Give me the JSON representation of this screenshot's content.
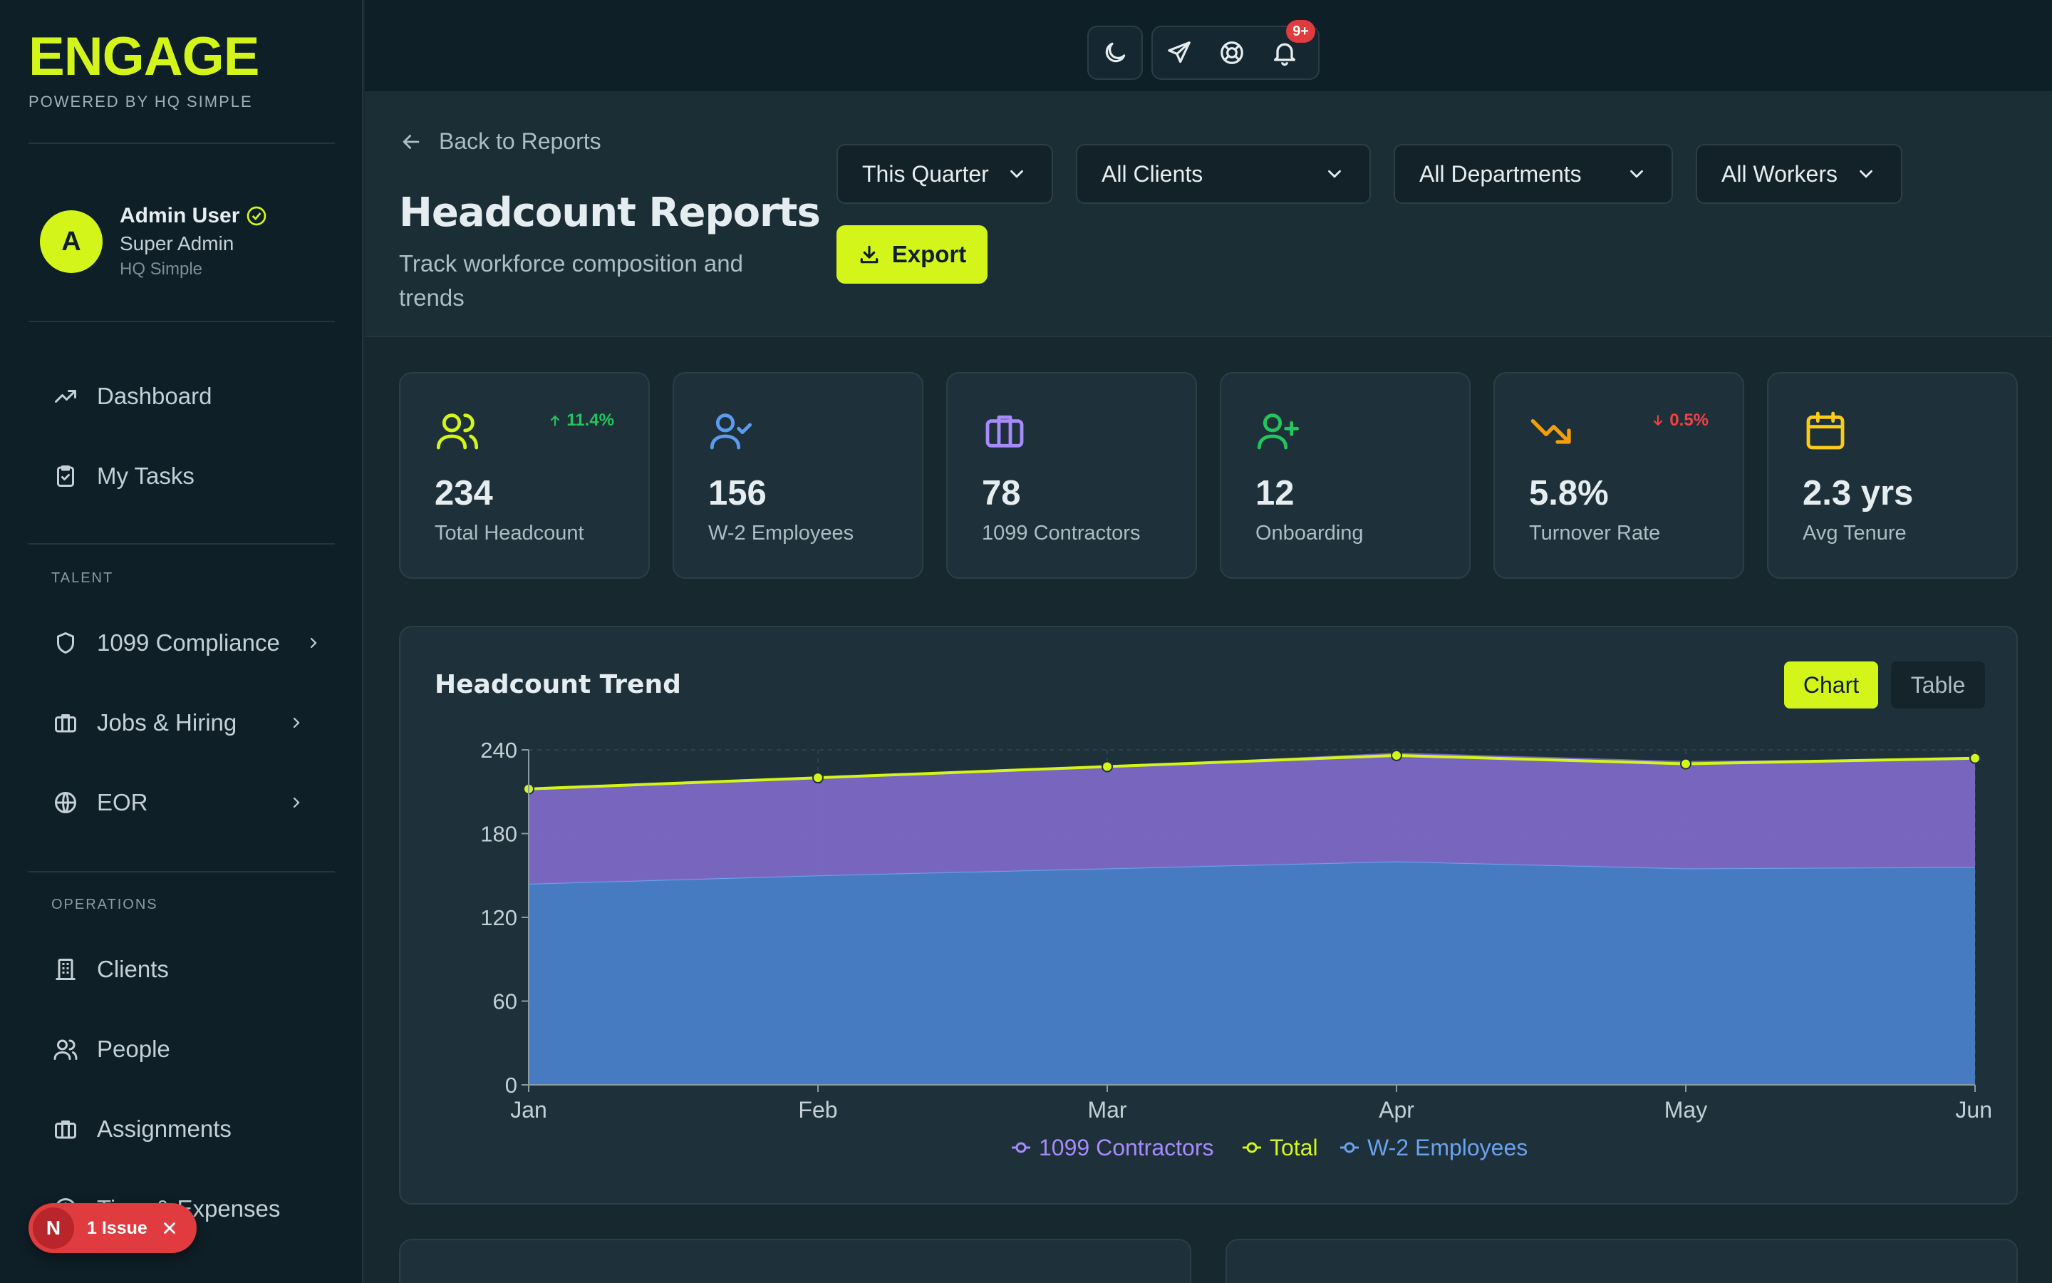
{
  "brand": {
    "name": "ENGAGE",
    "tagline": "POWERED BY HQ SIMPLE"
  },
  "user": {
    "initial": "A",
    "name": "Admin User",
    "role": "Super Admin",
    "org": "HQ Simple"
  },
  "nav": {
    "dashboard": "Dashboard",
    "my_tasks": "My Tasks",
    "talent_label": "TALENT",
    "compliance": "1099 Compliance",
    "jobs": "Jobs & Hiring",
    "eor": "EOR",
    "operations_label": "OPERATIONS",
    "clients": "Clients",
    "people": "People",
    "assignments": "Assignments",
    "time_expenses": "Time & Expenses"
  },
  "issue_badge": {
    "initial": "N",
    "text": "1 Issue"
  },
  "topbar": {
    "notification_count": "9+"
  },
  "header": {
    "back": "Back to Reports",
    "title": "Headcount Reports",
    "subtitle": "Track workforce composition and trends",
    "filters": {
      "period": "This Quarter",
      "clients": "All Clients",
      "departments": "All Departments",
      "workers": "All Workers"
    },
    "export": "Export"
  },
  "stats": [
    {
      "value": "234",
      "label": "Total Headcount",
      "delta": "11.4%",
      "delta_dir": "up",
      "color": "#d4f51a",
      "icon": "users-icon"
    },
    {
      "value": "156",
      "label": "W-2 Employees",
      "color": "#5b9bf0",
      "icon": "user-check-icon"
    },
    {
      "value": "78",
      "label": "1099 Contractors",
      "color": "#a78bfa",
      "icon": "briefcase-icon"
    },
    {
      "value": "12",
      "label": "Onboarding",
      "color": "#22c55e",
      "icon": "user-plus-icon"
    },
    {
      "value": "5.8%",
      "label": "Turnover Rate",
      "delta": "0.5%",
      "delta_dir": "down",
      "color": "#f59e0b",
      "icon": "trending-down-icon"
    },
    {
      "value": "2.3 yrs",
      "label": "Avg Tenure",
      "color": "#facc15",
      "icon": "calendar-icon"
    }
  ],
  "chart": {
    "title": "Headcount Trend",
    "toggle_chart": "Chart",
    "toggle_table": "Table"
  },
  "chart_data": {
    "type": "area",
    "x": [
      "Jan",
      "Feb",
      "Mar",
      "Apr",
      "May",
      "Jun"
    ],
    "ylim": [
      0,
      240
    ],
    "yticks": [
      0,
      60,
      120,
      180,
      240
    ],
    "series": [
      {
        "name": "1099 Contractors",
        "values": [
          68,
          70,
          73,
          78,
          77,
          78
        ],
        "color": "#7d68c4"
      },
      {
        "name": "Total",
        "values": [
          212,
          220,
          228,
          236,
          230,
          234
        ],
        "color": "#d4f51a"
      },
      {
        "name": "W-2 Employees",
        "values": [
          144,
          150,
          155,
          160,
          155,
          156
        ],
        "color": "#4a7fc8"
      }
    ],
    "legend_position": "bottom",
    "grid": true
  }
}
